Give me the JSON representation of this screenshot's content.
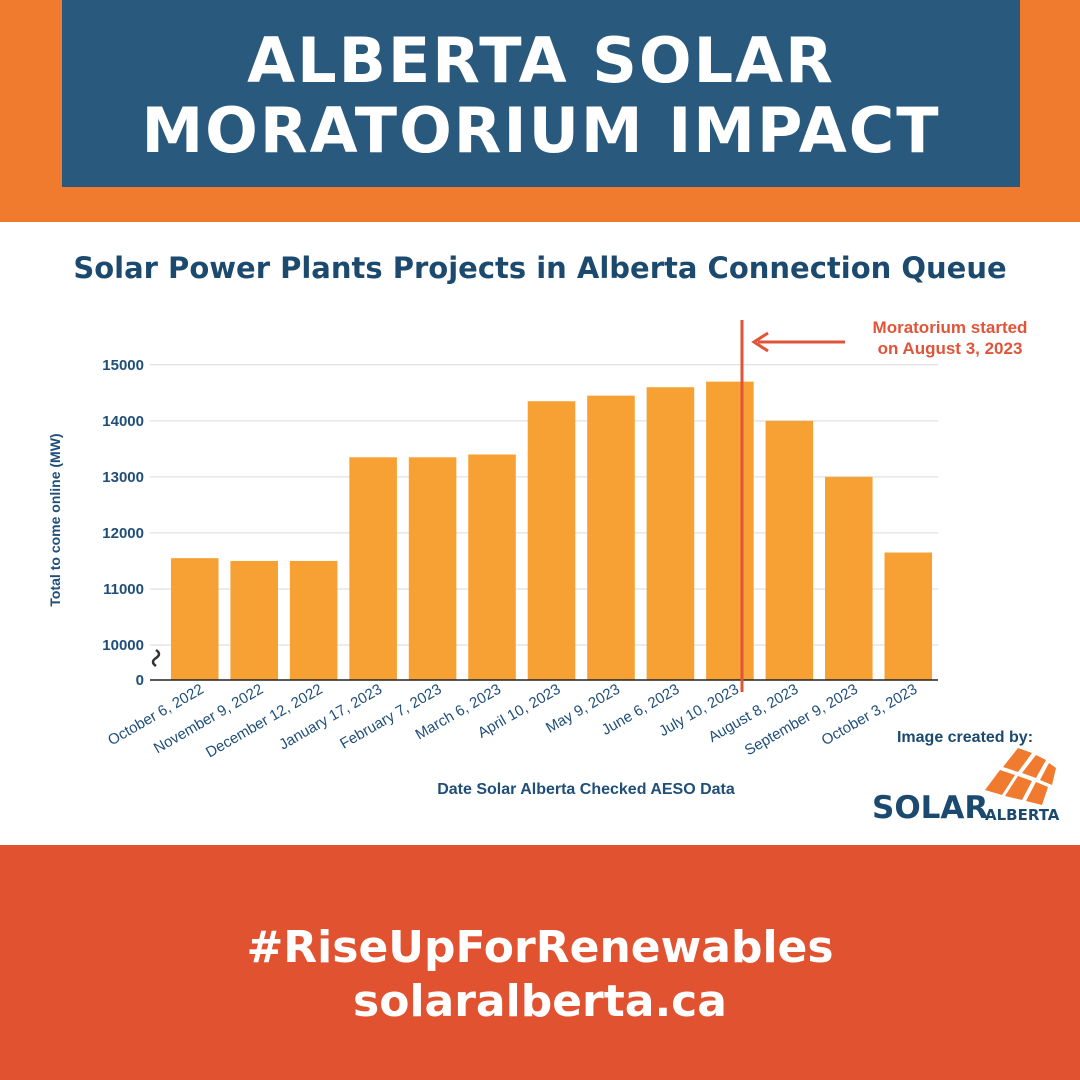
{
  "header": {
    "title": [
      "ALBERTA SOLAR",
      "MORATORIUM IMPACT"
    ],
    "subtitle": "Solar Power Plants Projects in Alberta Connection Queue"
  },
  "chart_data": {
    "type": "bar",
    "categories": [
      "October 6, 2022",
      "November 9, 2022",
      "December 12, 2022",
      "January 17, 2023",
      "February 7, 2023",
      "March 6, 2023",
      "April 10, 2023",
      "May 9, 2023",
      "June 6, 2023",
      "July 10, 2023",
      "August 8, 2023",
      "September 9, 2023",
      "October 3, 2023"
    ],
    "values": [
      11550,
      11500,
      11500,
      13350,
      13350,
      13400,
      14350,
      14450,
      14600,
      14700,
      14000,
      13000,
      11650
    ],
    "color": "#f7a135",
    "ylim": [
      0,
      15300
    ],
    "yticks": [
      0,
      10000,
      11000,
      12000,
      13000,
      14000,
      15000
    ],
    "broken_axis": true,
    "grid": true,
    "ylabel": "Total to come online (MW)",
    "xlabel": "Date Solar Alberta Checked AESO Data",
    "annotation": [
      "Moratorium started",
      "on August 3, 2023"
    ],
    "annotation_color": "#e0553a"
  },
  "credit": {
    "text": "Image created by:",
    "logo": [
      "SOLAR",
      "ALBERTA"
    ]
  },
  "footer": {
    "hashtag": "#RiseUpForRenewables",
    "url": "solaralberta.ca"
  }
}
